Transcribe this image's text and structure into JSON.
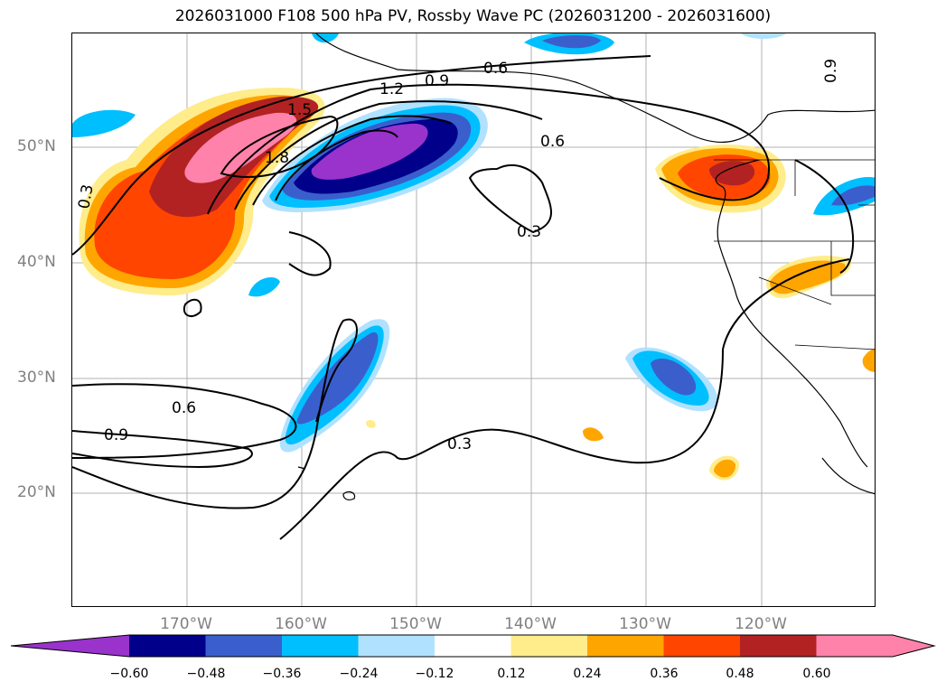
{
  "title": "2026031000 F108 500 hPa PV, Rossby Wave PC (2026031200 - 2026031600)",
  "map": {
    "lat_labels": [
      "50°N",
      "40°N",
      "30°N",
      "20°N"
    ],
    "lon_labels": [
      "170°W",
      "160°W",
      "150°W",
      "140°W",
      "130°W",
      "120°W"
    ],
    "contour_labels": [
      "0.6",
      "0.9",
      "1.2",
      "1.5",
      "1.8",
      "0.6",
      "0.3",
      "0.3",
      "0.6",
      "0.9",
      "0.3",
      "0.9"
    ]
  },
  "colorbar": {
    "ticks": [
      "−0.60",
      "−0.48",
      "−0.36",
      "−0.24",
      "−0.12",
      "0.12",
      "0.24",
      "0.36",
      "0.48",
      "0.60"
    ],
    "colors": [
      "#9933cc",
      "#00008b",
      "#3a5fcd",
      "#00bfff",
      "#b0e2ff",
      "#ffffff",
      "#ffec8b",
      "#ffa500",
      "#ff4500",
      "#b22222",
      "#ff82ab",
      "#ff82ab"
    ]
  }
}
